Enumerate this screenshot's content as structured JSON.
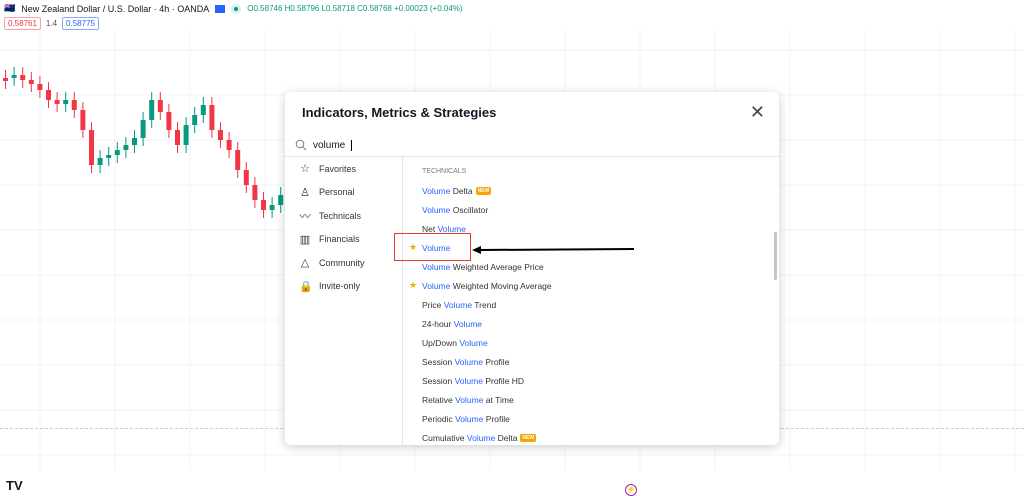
{
  "header": {
    "symbol": "New Zealand Dollar / U.S. Dollar · 4h · OANDA",
    "ohlc": "O0.58746 H0.58796 L0.58718 C0.58768 +0.00023 (+0.04%)",
    "sell_price": "0.58761",
    "spread": "1.4",
    "buy_price": "0.58775"
  },
  "colors": {
    "up": "#089981",
    "down": "#f23645",
    "accent": "#2962ff",
    "highlight_box": "#e53935",
    "star": "#f7a600"
  },
  "dialog": {
    "title": "Indicators, Metrics & Strategies",
    "search_value": "volume",
    "categories": [
      {
        "label": "Favorites",
        "icon": "star-icon"
      },
      {
        "label": "Personal",
        "icon": "user-icon"
      },
      {
        "label": "Technicals",
        "icon": "chart-icon"
      },
      {
        "label": "Financials",
        "icon": "bar-chart-icon"
      },
      {
        "label": "Community",
        "icon": "mountain-icon"
      },
      {
        "label": "Invite-only",
        "icon": "lock-icon"
      }
    ],
    "section": "TECHNICALS",
    "new_badge": "NEW",
    "items": [
      {
        "pre": "",
        "hl": "Volume",
        "post": " Delta",
        "new": true
      },
      {
        "pre": "",
        "hl": "Volume",
        "post": " Oscillator"
      },
      {
        "pre": "Net ",
        "hl": "Volume",
        "post": ""
      },
      {
        "pre": "",
        "hl": "Volume",
        "post": "",
        "star": true
      },
      {
        "pre": "",
        "hl": "Volume",
        "post": " Weighted Average Price"
      },
      {
        "pre": "",
        "hl": "Volume",
        "post": " Weighted Moving Average",
        "star": true
      },
      {
        "pre": "Price ",
        "hl": "Volume",
        "post": " Trend"
      },
      {
        "pre": "24-hour ",
        "hl": "Volume",
        "post": ""
      },
      {
        "pre": "Up/Down ",
        "hl": "Volume",
        "post": ""
      },
      {
        "pre": "Session ",
        "hl": "Volume",
        "post": " Profile"
      },
      {
        "pre": "Session ",
        "hl": "Volume",
        "post": " Profile HD"
      },
      {
        "pre": "Relative ",
        "hl": "Volume",
        "post": " at Time"
      },
      {
        "pre": "Periodic ",
        "hl": "Volume",
        "post": " Profile"
      },
      {
        "pre": "Cumulative ",
        "hl": "Volume",
        "post": " Delta",
        "new": true
      }
    ]
  }
}
